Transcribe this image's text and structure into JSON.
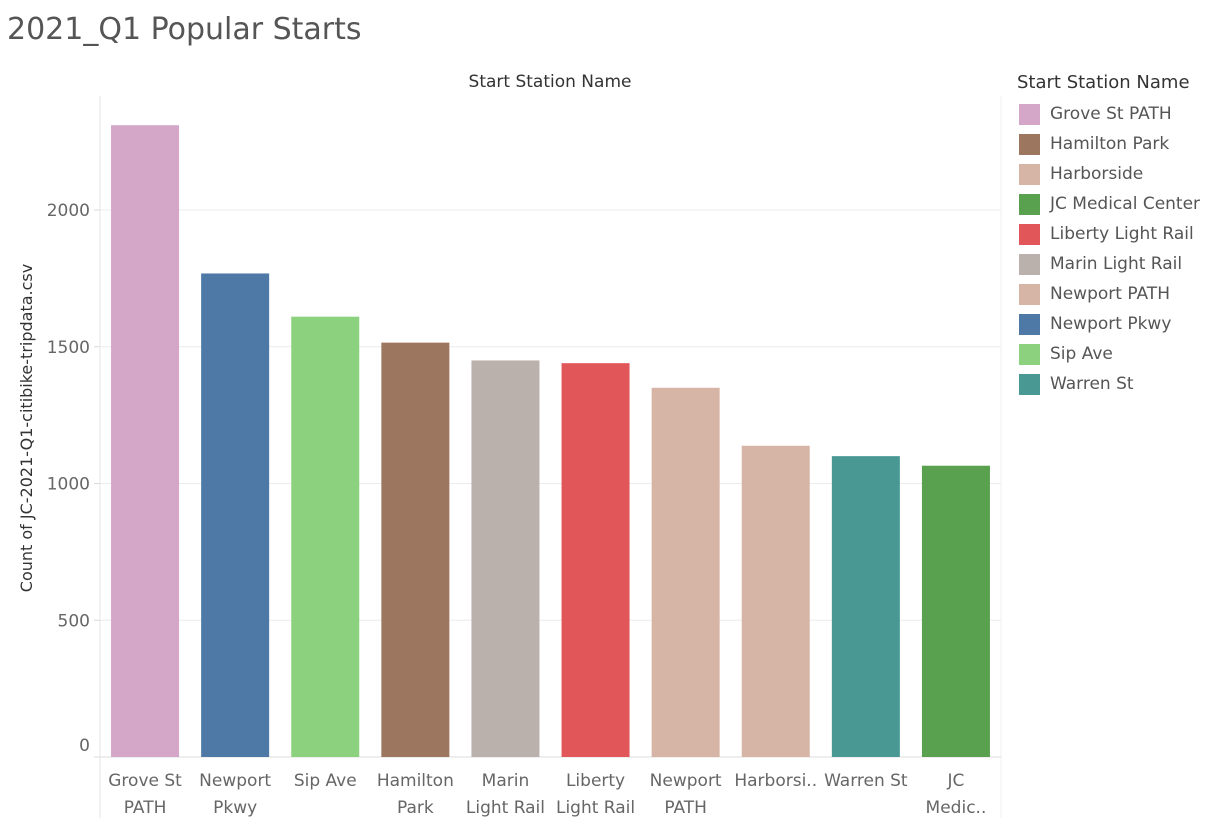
{
  "title": "2021_Q1 Popular Starts",
  "colors": {
    "Grove St PATH": "#d4a6c8",
    "Hamilton Park": "#9d7660",
    "Harborside": "#d7b5a6",
    "JC Medical Center": "#59a14f",
    "Liberty Light Rail": "#e15759",
    "Marin Light Rail": "#bab0ac",
    "Newport PATH": "#d7b5a6",
    "Newport Pkwy": "#4e79a7",
    "Sip Ave": "#8cd17d",
    "Warren St": "#499894"
  },
  "legend": {
    "title": "Start Station Name",
    "items": [
      {
        "label": "Grove St PATH"
      },
      {
        "label": "Hamilton Park"
      },
      {
        "label": "Harborside"
      },
      {
        "label": "JC Medical Center"
      },
      {
        "label": "Liberty Light Rail"
      },
      {
        "label": "Marin Light Rail"
      },
      {
        "label": "Newport PATH"
      },
      {
        "label": "Newport Pkwy"
      },
      {
        "label": "Sip Ave"
      },
      {
        "label": "Warren St"
      }
    ]
  },
  "chart_data": {
    "type": "bar",
    "title": "2021_Q1 Popular Starts",
    "column_header": "Start Station Name",
    "ylabel": "Count of JC-2021-Q1-citibike-tripdata.csv",
    "xlabel": "",
    "ylim": [
      0,
      2400
    ],
    "yticks": [
      0,
      500,
      1000,
      1500,
      2000
    ],
    "grid": true,
    "legend_position": "right",
    "categories": [
      "Grove St PATH",
      "Newport Pkwy",
      "Sip Ave",
      "Hamilton Park",
      "Marin Light Rail",
      "Liberty Light Rail",
      "Newport PATH",
      "Harborside",
      "Warren St",
      "JC Medical Center"
    ],
    "category_tick_labels": [
      [
        "Grove St",
        "PATH"
      ],
      [
        "Newport",
        "Pkwy"
      ],
      [
        "Sip Ave"
      ],
      [
        "Hamilton",
        "Park"
      ],
      [
        "Marin",
        "Light Rail"
      ],
      [
        "Liberty",
        "Light Rail"
      ],
      [
        "Newport",
        "PATH"
      ],
      [
        "Harborsi.."
      ],
      [
        "Warren St"
      ],
      [
        "JC",
        "Medic.."
      ]
    ],
    "values": [
      2310,
      1768,
      1610,
      1515,
      1450,
      1440,
      1350,
      1138,
      1100,
      1065
    ]
  }
}
